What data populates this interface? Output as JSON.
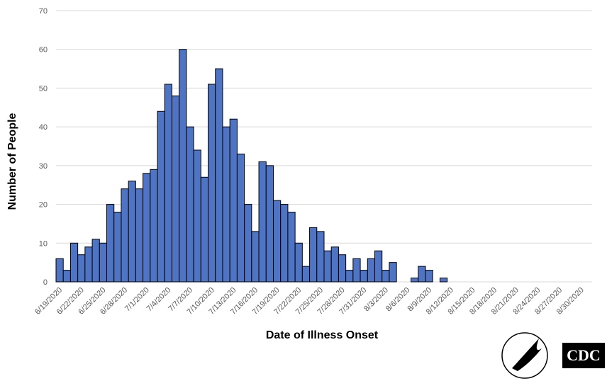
{
  "chart_data": {
    "type": "bar",
    "y_label": "Number of People",
    "x_label": "Date of Illness Onset",
    "categories": [
      "6/19/2020",
      null,
      null,
      "6/22/2020",
      null,
      null,
      "6/25/2020",
      null,
      null,
      "6/28/2020",
      null,
      null,
      "7/1/2020",
      null,
      null,
      "7/4/2020",
      null,
      null,
      "7/7/2020",
      null,
      null,
      "7/10/2020",
      null,
      null,
      "7/13/2020",
      null,
      null,
      "7/16/2020",
      null,
      null,
      "7/19/2020",
      null,
      null,
      "7/22/2020",
      null,
      null,
      "7/25/2020",
      null,
      null,
      "7/28/2020",
      null,
      null,
      "7/31/2020",
      null,
      null,
      "8/3/2020",
      null,
      null,
      "8/6/2020",
      null,
      null,
      "8/9/2020",
      null,
      null,
      "8/12/2020",
      null,
      null,
      "8/15/2020",
      null,
      null,
      "8/18/2020",
      null,
      null,
      "8/21/2020",
      null,
      null,
      "8/24/2020",
      null,
      null,
      "8/27/2020",
      null,
      null,
      "8/30/2020",
      null
    ],
    "values": [
      6,
      3,
      10,
      7,
      9,
      11,
      10,
      20,
      18,
      24,
      26,
      24,
      28,
      29,
      44,
      51,
      48,
      60,
      40,
      34,
      27,
      51,
      55,
      40,
      42,
      33,
      20,
      13,
      31,
      30,
      21,
      20,
      18,
      10,
      4,
      14,
      13,
      8,
      9,
      7,
      3,
      6,
      3,
      6,
      8,
      3,
      5,
      0,
      0,
      1,
      4,
      3,
      0,
      1,
      0,
      0,
      0,
      0,
      0,
      0,
      0,
      0,
      0,
      0,
      0,
      0,
      0,
      0,
      0,
      0,
      0,
      0,
      0,
      0
    ],
    "color": "#4f74c4",
    "ylim": [
      0,
      70
    ],
    "yticks": [
      0,
      10,
      20,
      30,
      40,
      50,
      60,
      70
    ],
    "grid": true,
    "logo_text": "CDC"
  }
}
